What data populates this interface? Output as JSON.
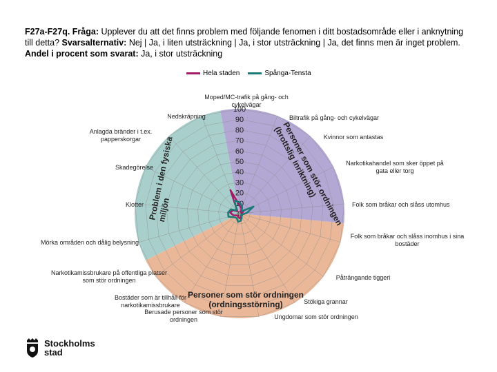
{
  "title": {
    "q": "F27a-F27q. Fråga:",
    "q_text": "Upplever du att det finns problem med följande fenomen i ditt bostadsområde eller i anknytning till detta?",
    "alt_label": "Svarsalternativ:",
    "alt_text": "Nej | Ja, i liten utsträckning | Ja, i stor utsträckning | Ja, det finns men är inget problem.",
    "share_label": "Andel i procent som svarat:",
    "share_text": "Ja, i stor utsträckning"
  },
  "logo": {
    "line1": "Stockholms",
    "line2": "stad",
    "icon": "stockholm-crown-shield-icon"
  },
  "colors": {
    "hela_staden": "#a0196a",
    "spanga_tensta": "#1a7a78",
    "sector_physical": "#a9cfcc",
    "sector_persons": "#b3a8d4",
    "sector_people": "#eab899",
    "grid": "#8a8a8a"
  },
  "chart_data": {
    "type": "radar",
    "rlim": [
      0,
      100
    ],
    "ticks": [
      "0",
      "10",
      "20",
      "30",
      "40",
      "50",
      "60",
      "70",
      "80",
      "90",
      "100"
    ],
    "legend_position": "top",
    "categories": [
      "Moped/MC-trafik på gång- och cykelvägar",
      "Biltrafik på gång- och cykelvägar",
      "Kvinnor som antastas",
      "Narkotikahandel som sker öppet på gata eller torg",
      "Folk som bråkar och slåss utomhus",
      "Folk som bråkar och slåss inomhus i sina bostäder",
      "Påträngande tiggeri",
      "Stökiga grannar",
      "Ungdomar som stör ordningen",
      "Berusade personer som stör ordningen",
      "Bostäder som är tillhåll för narkotikamissbrukare",
      "Narkotikamissbrukare på offentliga platser som stör ordningen",
      "Mörka områden och dålig belysning",
      "Klotter",
      "Skadegörelse",
      "Anlagda bränder i t.ex. papperskorgar",
      "Nedskräpning"
    ],
    "group_labels": [
      {
        "name": "Personer som stör ordningen (brottslig inriktning)"
      },
      {
        "name": "Personer som stör ordningen (ordningsstörning)"
      },
      {
        "name": "Problem i den fysiska miljön"
      }
    ],
    "series": [
      {
        "name": "Hela staden",
        "values": [
          8,
          5,
          2,
          4,
          2,
          2,
          3,
          3,
          5,
          4,
          3,
          3,
          6,
          9,
          7,
          3,
          24
        ]
      },
      {
        "name": "Spånga-Tensta",
        "values": [
          11,
          7,
          3,
          15,
          7,
          3,
          2,
          4,
          7,
          8,
          5,
          6,
          11,
          11,
          9,
          4,
          13
        ]
      }
    ]
  }
}
